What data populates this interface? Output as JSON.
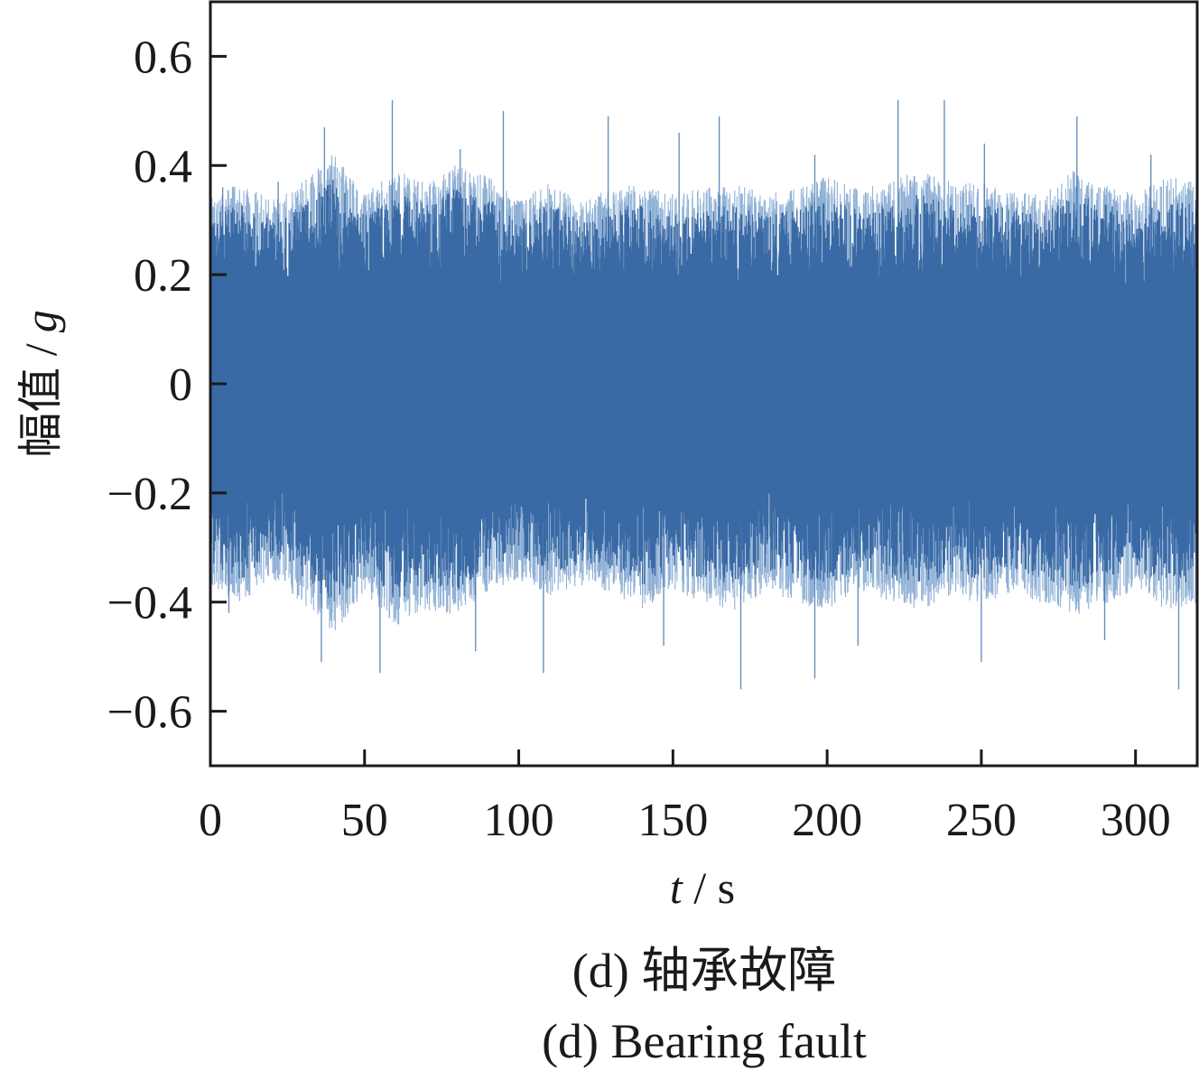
{
  "chart_data": {
    "type": "line",
    "series": [
      {
        "color": "#3a6aa5",
        "light_color": "#8fb0d5",
        "x_range": [
          0,
          320
        ],
        "envelope": {
          "x": [
            0,
            10,
            20,
            30,
            40,
            50,
            60,
            70,
            80,
            90,
            100,
            110,
            120,
            130,
            140,
            150,
            160,
            170,
            180,
            190,
            200,
            210,
            220,
            230,
            240,
            250,
            260,
            270,
            280,
            290,
            300,
            310,
            320
          ],
          "upper": [
            0.31,
            0.33,
            0.3,
            0.33,
            0.38,
            0.31,
            0.35,
            0.33,
            0.36,
            0.34,
            0.3,
            0.33,
            0.3,
            0.32,
            0.33,
            0.31,
            0.32,
            0.33,
            0.31,
            0.32,
            0.34,
            0.32,
            0.33,
            0.35,
            0.33,
            0.33,
            0.32,
            0.31,
            0.35,
            0.33,
            0.31,
            0.34,
            0.33
          ],
          "lower": [
            -0.33,
            -0.36,
            -0.32,
            -0.36,
            -0.41,
            -0.34,
            -0.4,
            -0.37,
            -0.38,
            -0.34,
            -0.32,
            -0.35,
            -0.33,
            -0.34,
            -0.37,
            -0.34,
            -0.36,
            -0.37,
            -0.34,
            -0.36,
            -0.37,
            -0.34,
            -0.36,
            -0.37,
            -0.35,
            -0.36,
            -0.34,
            -0.36,
            -0.38,
            -0.36,
            -0.34,
            -0.37,
            -0.36
          ]
        },
        "peaks": [
          {
            "x": 4,
            "y": 0.36
          },
          {
            "x": 22,
            "y": 0.37
          },
          {
            "x": 37,
            "y": 0.47
          },
          {
            "x": 59,
            "y": 0.52
          },
          {
            "x": 81,
            "y": 0.43
          },
          {
            "x": 95,
            "y": 0.5
          },
          {
            "x": 129,
            "y": 0.49
          },
          {
            "x": 152,
            "y": 0.46
          },
          {
            "x": 165,
            "y": 0.49
          },
          {
            "x": 196,
            "y": 0.42
          },
          {
            "x": 223,
            "y": 0.52
          },
          {
            "x": 238,
            "y": 0.52
          },
          {
            "x": 251,
            "y": 0.44
          },
          {
            "x": 281,
            "y": 0.49
          },
          {
            "x": 305,
            "y": 0.42
          }
        ],
        "troughs": [
          {
            "x": 6,
            "y": -0.42
          },
          {
            "x": 36,
            "y": -0.51
          },
          {
            "x": 55,
            "y": -0.53
          },
          {
            "x": 86,
            "y": -0.49
          },
          {
            "x": 108,
            "y": -0.53
          },
          {
            "x": 147,
            "y": -0.48
          },
          {
            "x": 172,
            "y": -0.56
          },
          {
            "x": 196,
            "y": -0.54
          },
          {
            "x": 210,
            "y": -0.48
          },
          {
            "x": 250,
            "y": -0.51
          },
          {
            "x": 290,
            "y": -0.47
          },
          {
            "x": 314,
            "y": -0.56
          }
        ]
      }
    ],
    "xlabel": "t / s",
    "ylabel": "幅值 / g",
    "xlim": [
      0,
      320
    ],
    "ylim": [
      -0.7,
      0.7
    ],
    "xticks": [
      0,
      50,
      100,
      150,
      200,
      250,
      300
    ],
    "xtick_labels": [
      "0",
      "50",
      "100",
      "150",
      "200",
      "250",
      "300"
    ],
    "yticks": [
      0.6,
      0.4,
      0.2,
      0,
      -0.2,
      -0.4,
      -0.6
    ],
    "ytick_labels": [
      "0.6",
      "0.4",
      "0.2",
      "0",
      "−0.2",
      "−0.4",
      "−0.6"
    ],
    "grid": false
  },
  "captions": {
    "cn": "(d)  轴承故障",
    "en": "(d)  Bearing fault"
  },
  "labels": {
    "x_var": "t",
    "x_rest": " / s",
    "y_cn": "幅值 /",
    "y_var": "g"
  }
}
